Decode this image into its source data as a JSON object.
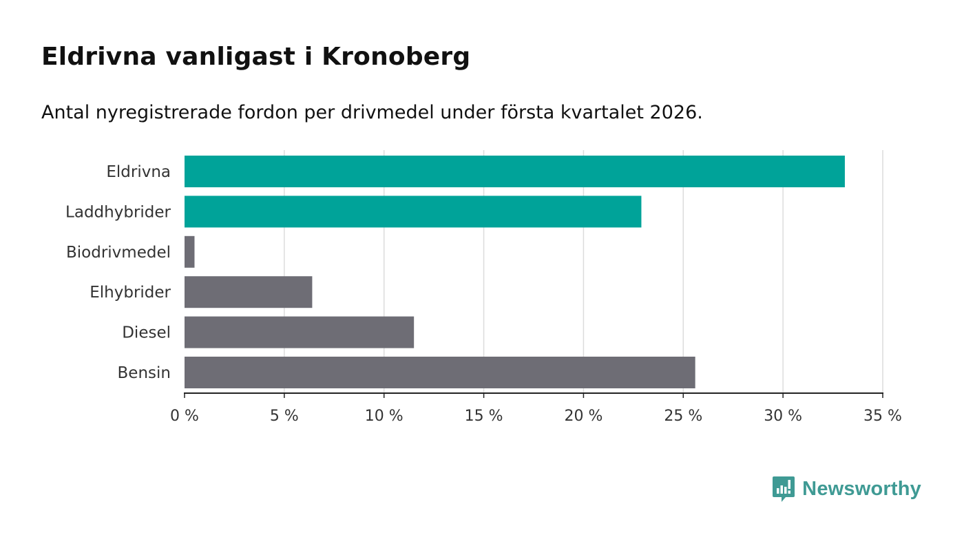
{
  "chart_data": {
    "type": "bar",
    "orientation": "horizontal",
    "title": "Eldrivna vanligast i Kronoberg",
    "subtitle": "Antal nyregistrerade fordon per drivmedel under första kvartalet 2026.",
    "xlabel": "",
    "ylabel": "",
    "xlim": [
      0,
      35
    ],
    "ticks": [
      0,
      5,
      10,
      15,
      20,
      25,
      30,
      35
    ],
    "tick_suffix": " %",
    "grid": true,
    "categories": [
      "Eldrivna",
      "Laddhybrider",
      "Biodrivmedel",
      "Elhybrider",
      "Diesel",
      "Bensin"
    ],
    "values": [
      33.1,
      22.9,
      0.5,
      6.4,
      11.5,
      25.6
    ],
    "colors": [
      "#00a399",
      "#00a399",
      "#6e6d75",
      "#6e6d75",
      "#6e6d75",
      "#6e6d75"
    ]
  },
  "brand": {
    "name": "Newsworthy",
    "color": "#3f9a94",
    "icon": "newsworthy-logo-icon"
  }
}
